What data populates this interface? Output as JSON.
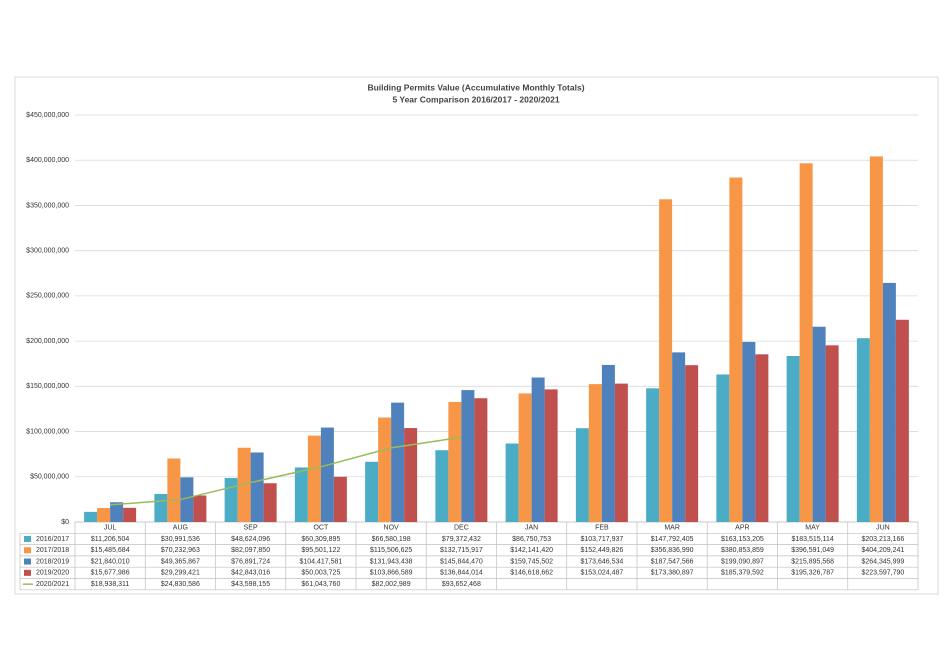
{
  "chart_data": {
    "type": "bar",
    "title": "Building Permits Value (Accumulative Monthly Totals)",
    "subtitle": "5 Year Comparison 2016/2017 - 2020/2021",
    "categories": [
      "JUL",
      "AUG",
      "SEP",
      "OCT",
      "NOV",
      "DEC",
      "JAN",
      "FEB",
      "MAR",
      "APR",
      "MAY",
      "JUN"
    ],
    "ylim": [
      0,
      450000000
    ],
    "yticks": [
      {
        "value": 0,
        "label": "$0"
      },
      {
        "value": 50000000,
        "label": "$50,000,000"
      },
      {
        "value": 100000000,
        "label": "$100,000,000"
      },
      {
        "value": 150000000,
        "label": "$150,000,000"
      },
      {
        "value": 200000000,
        "label": "$200,000,000"
      },
      {
        "value": 250000000,
        "label": "$250,000,000"
      },
      {
        "value": 300000000,
        "label": "$300,000,000"
      },
      {
        "value": 350000000,
        "label": "$350,000,000"
      },
      {
        "value": 400000000,
        "label": "$400,000,000"
      },
      {
        "value": 450000000,
        "label": "$450,000,000"
      }
    ],
    "grid": true,
    "series": [
      {
        "name": "2016/2017",
        "color": "#4bacc6",
        "values": [
          11206504,
          30991536,
          48624096,
          60309895,
          66580198,
          79372432,
          86750753,
          103717937,
          147792405,
          163153205,
          183515114,
          203213166
        ],
        "value_labels": [
          "$11,206,504",
          "$30,991,536",
          "$48,624,096",
          "$60,309,895",
          "$66,580,198",
          "$79,372,432",
          "$86,750,753",
          "$103,717,937",
          "$147,792,405",
          "$163,153,205",
          "$183,515,114",
          "$203,213,166"
        ]
      },
      {
        "name": "2017/2018",
        "color": "#f79646",
        "values": [
          15485684,
          70232963,
          82097850,
          95501122,
          115506625,
          132715917,
          142141420,
          152449826,
          356836990,
          380853859,
          396591049,
          404209241
        ],
        "value_labels": [
          "$15,485,684",
          "$70,232,963",
          "$82,097,850",
          "$95,501,122",
          "$115,506,625",
          "$132,715,917",
          "$142,141,420",
          "$152,449,826",
          "$356,836,990",
          "$380,853,859",
          "$396,591,049",
          "$404,209,241"
        ]
      },
      {
        "name": "2018/2019",
        "color": "#4f81bd",
        "values": [
          21840010,
          49365867,
          76891724,
          104417581,
          131943438,
          145844470,
          159745502,
          173646534,
          187547566,
          199090897,
          215895568,
          264345999
        ],
        "value_labels": [
          "$21,840,010",
          "$49,365,867",
          "$76,891,724",
          "$104,417,581",
          "$131,943,438",
          "$145,844,470",
          "$159,745,502",
          "$173,646,534",
          "$187,547,566",
          "$199,090,897",
          "$215,895,568",
          "$264,345,999"
        ]
      },
      {
        "name": "2019/2020",
        "color": "#c0504d",
        "values": [
          15677986,
          29299421,
          42843016,
          50003725,
          103866589,
          136844014,
          146618662,
          153024487,
          173380897,
          185379592,
          195326787,
          223597790
        ],
        "value_labels": [
          "$15,677,986",
          "$29,299,421",
          "$42,843,016",
          "$50,003,725",
          "$103,866,589",
          "$136,844,014",
          "$146,618,662",
          "$153,024,487",
          "$173,380,897",
          "$185,379,592",
          "$195,326,787",
          "$223,597,790"
        ]
      },
      {
        "name": "2020/2021",
        "color": "#9bbb59",
        "type": "line",
        "values": [
          18938311,
          24830586,
          43598155,
          61043760,
          82002989,
          93652468,
          null,
          null,
          null,
          null,
          null,
          null
        ],
        "value_labels": [
          "$18,938,311",
          "$24,830,586",
          "$43,598,155",
          "$61,043,760",
          "$82,002,989",
          "$93,652,468",
          null,
          null,
          null,
          null,
          null,
          null
        ]
      }
    ]
  }
}
